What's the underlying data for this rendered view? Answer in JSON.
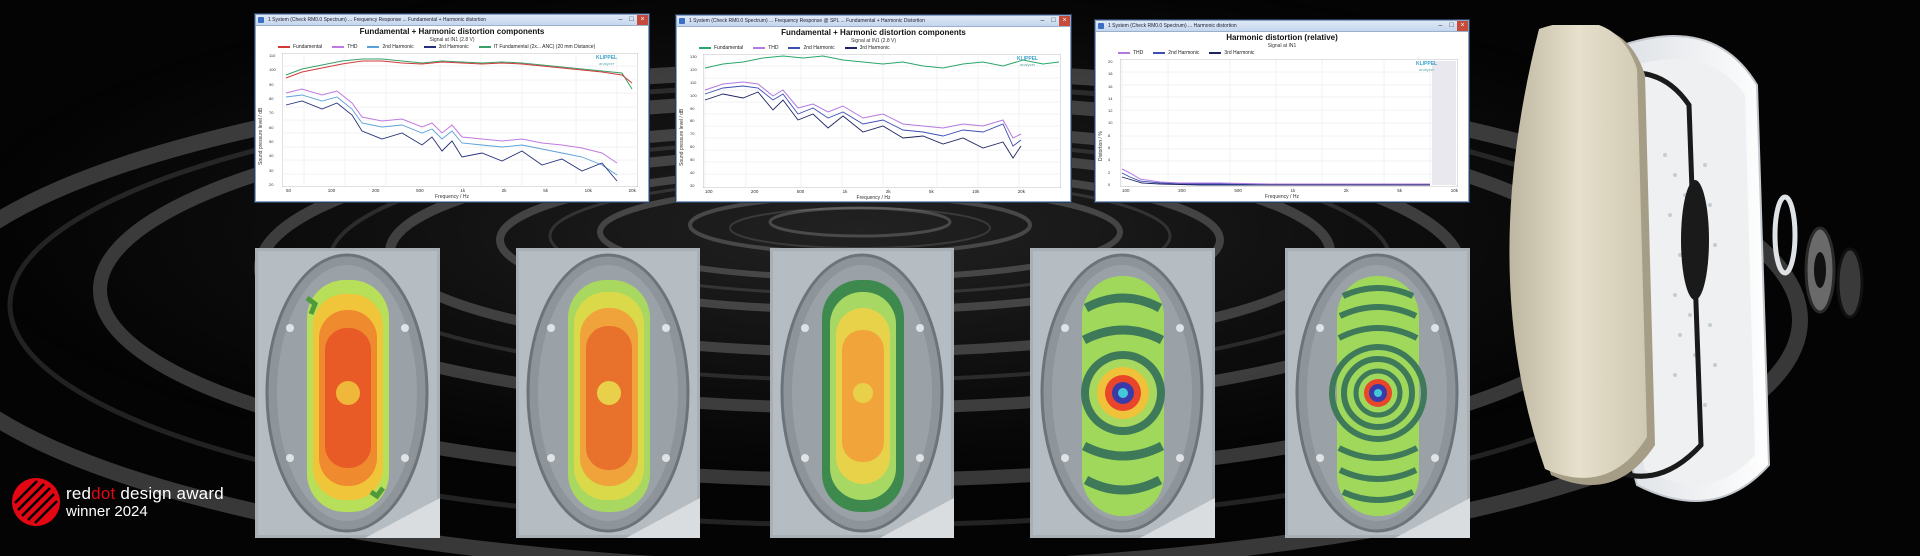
{
  "windows": [
    {
      "title_bar": "1 System (Check RM0.0 Spectrum) ... Frequency Response ... Fundamental + Harmonic distortion",
      "chart_title": "Fundamental + Harmonic distortion components",
      "subtitle": "Signal at IN1 (2.8 V)",
      "legend": [
        {
          "label": "Fundamental",
          "color": "#d23a3a"
        },
        {
          "label": "THD",
          "color": "#c07adf"
        },
        {
          "label": "2nd Harmonic",
          "color": "#5aa0d8"
        },
        {
          "label": "3rd Harmonic",
          "color": "#26307a"
        },
        {
          "label": "IT Fundamental (2x... ANC) (20 mm Distance)",
          "color": "#3aa06a"
        }
      ],
      "xlabel": "Frequency / Hz",
      "ylabel": "Sound pressure level / dB",
      "xticks": [
        "50",
        "100",
        "200",
        "500",
        "1k",
        "2k",
        "5k",
        "10k",
        "20k"
      ],
      "yticks": [
        "110",
        "100",
        "90",
        "80",
        "70",
        "60",
        "50",
        "40",
        "30",
        "20"
      ]
    },
    {
      "title_bar": "1 System (Check RM0.0 Spectrum) ... Frequency Response @ SPL ... Fundamental + Harmonic Distortion",
      "chart_title": "Fundamental + Harmonic distortion components",
      "subtitle": "Signal at IN1 (2.8 V)",
      "legend": [
        {
          "label": "Fundamental",
          "color": "#2aa66a"
        },
        {
          "label": "THD",
          "color": "#b27adf"
        },
        {
          "label": "2nd Harmonic",
          "color": "#3d4fb3"
        },
        {
          "label": "3rd Harmonic",
          "color": "#1d2461"
        }
      ],
      "xlabel": "Frequency / Hz",
      "ylabel": "Sound pressure level / dB",
      "xticks": [
        "100",
        "200",
        "500",
        "1k",
        "2k",
        "5k",
        "10k",
        "20k"
      ],
      "yticks": [
        "130",
        "120",
        "110",
        "100",
        "90",
        "80",
        "70",
        "60",
        "50",
        "40",
        "30"
      ]
    },
    {
      "title_bar": "1 System (Check RM0.0 Spectrum) ... Harmonic distortion",
      "chart_title": "Harmonic distortion (relative)",
      "subtitle": "Signal at IN1",
      "legend": [
        {
          "label": "THD",
          "color": "#b27adf"
        },
        {
          "label": "2nd Harmonic",
          "color": "#3d4fb3"
        },
        {
          "label": "3rd Harmonic",
          "color": "#1d2461"
        }
      ],
      "xlabel": "Frequency / Hz",
      "ylabel": "Distortion / %",
      "xticks": [
        "100",
        "200",
        "500",
        "1k",
        "2k",
        "5k",
        "10k"
      ],
      "yticks": [
        "20",
        "18",
        "16",
        "14",
        "12",
        "10",
        "8",
        "6",
        "4",
        "2",
        "0"
      ]
    }
  ],
  "klippel": {
    "name": "KLIPPEL",
    "sub": "analyzer"
  },
  "award": {
    "brand_a": "red",
    "brand_b": "dot",
    "brand_c": " design award",
    "line2": "winner  2024"
  },
  "colors": {
    "background": "#050505",
    "accent_red": "#e30613"
  }
}
